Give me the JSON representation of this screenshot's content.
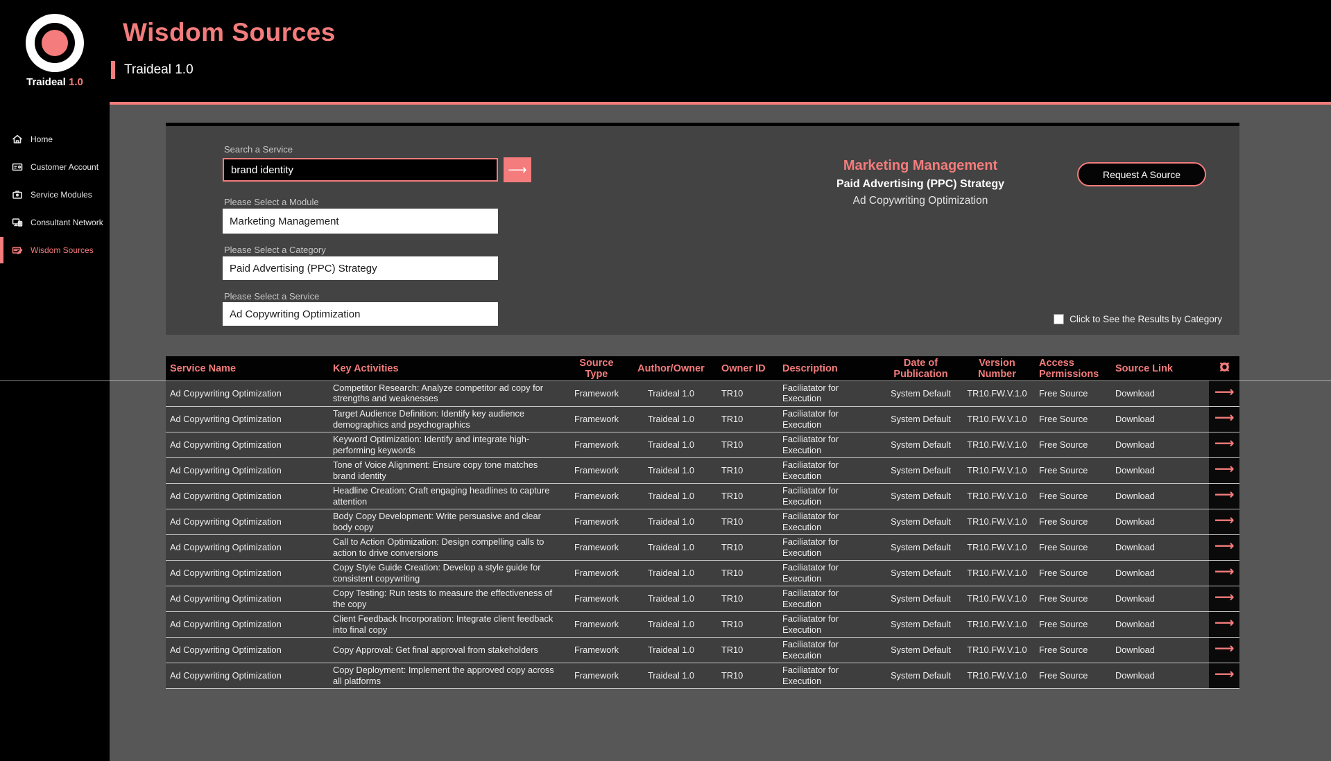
{
  "colors": {
    "accent": "#f47c7c"
  },
  "brand": {
    "name": "Traideal",
    "version": "1.0"
  },
  "header": {
    "title": "Wisdom Sources",
    "subtitle": "Traideal 1.0"
  },
  "sidebar": {
    "items": [
      {
        "slug": "home",
        "label": "Home",
        "icon": "home-icon",
        "active": false
      },
      {
        "slug": "customer-account",
        "label": "Customer Account",
        "icon": "customer-account-icon",
        "active": false
      },
      {
        "slug": "service-modules",
        "label": "Service Modules",
        "icon": "service-modules-icon",
        "active": false
      },
      {
        "slug": "consultant-network",
        "label": "Consultant Network",
        "icon": "consultant-network-icon",
        "active": false
      },
      {
        "slug": "wisdom-sources",
        "label": "Wisdom Sources",
        "icon": "wisdom-sources-icon",
        "active": true
      }
    ]
  },
  "search_panel": {
    "search_label": "Search a Service",
    "search_value": "brand identity",
    "search_button_icon": "arrow-right-icon",
    "module_label": "Please Select a Module",
    "module_value": "Marketing Management",
    "category_label": "Please Select a Category",
    "category_value": "Paid Advertising (PPC) Strategy",
    "service_label": "Please Select a Service",
    "service_value": "Ad Copywriting Optimization",
    "selection_summary": {
      "module": "Marketing Management",
      "category": "Paid Advertising (PPC) Strategy",
      "service": "Ad Copywriting Optimization"
    },
    "request_button_label": "Request A Source",
    "results_checkbox_label": "Click to See the Results by Category",
    "results_checkbox_checked": false
  },
  "table": {
    "settings_icon": "gear-icon",
    "row_action_icon": "arrow-right-icon",
    "columns": [
      "Service Name",
      "Key Activities",
      "Source Type",
      "Author/Owner",
      "Owner ID",
      "Description",
      "Date of Publication",
      "Version Number",
      "Access Permissions",
      "Source Link"
    ],
    "rows": [
      [
        "Ad Copywriting Optimization",
        "Competitor Research: Analyze competitor ad copy for strengths and weaknesses",
        "Framework",
        "Traideal 1.0",
        "TR10",
        "Faciliatator for Execution",
        "System Default",
        "TR10.FW.V.1.0",
        "Free Source",
        "Download"
      ],
      [
        "Ad Copywriting Optimization",
        "Target Audience Definition: Identify key audience demographics and psychographics",
        "Framework",
        "Traideal 1.0",
        "TR10",
        "Faciliatator for Execution",
        "System Default",
        "TR10.FW.V.1.0",
        "Free Source",
        "Download"
      ],
      [
        "Ad Copywriting Optimization",
        "Keyword Optimization: Identify and integrate high-performing keywords",
        "Framework",
        "Traideal 1.0",
        "TR10",
        "Faciliatator for Execution",
        "System Default",
        "TR10.FW.V.1.0",
        "Free Source",
        "Download"
      ],
      [
        "Ad Copywriting Optimization",
        "Tone of Voice Alignment: Ensure copy tone matches brand identity",
        "Framework",
        "Traideal 1.0",
        "TR10",
        "Faciliatator for Execution",
        "System Default",
        "TR10.FW.V.1.0",
        "Free Source",
        "Download"
      ],
      [
        "Ad Copywriting Optimization",
        "Headline Creation: Craft engaging headlines to capture attention",
        "Framework",
        "Traideal 1.0",
        "TR10",
        "Faciliatator for Execution",
        "System Default",
        "TR10.FW.V.1.0",
        "Free Source",
        "Download"
      ],
      [
        "Ad Copywriting Optimization",
        "Body Copy Development: Write persuasive and clear body copy",
        "Framework",
        "Traideal 1.0",
        "TR10",
        "Faciliatator for Execution",
        "System Default",
        "TR10.FW.V.1.0",
        "Free Source",
        "Download"
      ],
      [
        "Ad Copywriting Optimization",
        "Call to Action Optimization: Design compelling calls to action to drive conversions",
        "Framework",
        "Traideal 1.0",
        "TR10",
        "Faciliatator for Execution",
        "System Default",
        "TR10.FW.V.1.0",
        "Free Source",
        "Download"
      ],
      [
        "Ad Copywriting Optimization",
        "Copy Style Guide Creation: Develop a style guide for consistent copywriting",
        "Framework",
        "Traideal 1.0",
        "TR10",
        "Faciliatator for Execution",
        "System Default",
        "TR10.FW.V.1.0",
        "Free Source",
        "Download"
      ],
      [
        "Ad Copywriting Optimization",
        "Copy Testing: Run tests to measure the effectiveness of the copy",
        "Framework",
        "Traideal 1.0",
        "TR10",
        "Faciliatator for Execution",
        "System Default",
        "TR10.FW.V.1.0",
        "Free Source",
        "Download"
      ],
      [
        "Ad Copywriting Optimization",
        "Client Feedback Incorporation: Integrate client feedback into final copy",
        "Framework",
        "Traideal 1.0",
        "TR10",
        "Faciliatator for Execution",
        "System Default",
        "TR10.FW.V.1.0",
        "Free Source",
        "Download"
      ],
      [
        "Ad Copywriting Optimization",
        "Copy Approval: Get final approval from stakeholders",
        "Framework",
        "Traideal 1.0",
        "TR10",
        "Faciliatator for Execution",
        "System Default",
        "TR10.FW.V.1.0",
        "Free Source",
        "Download"
      ],
      [
        "Ad Copywriting Optimization",
        "Copy Deployment: Implement the approved copy across all platforms",
        "Framework",
        "Traideal 1.0",
        "TR10",
        "Faciliatator for Execution",
        "System Default",
        "TR10.FW.V.1.0",
        "Free Source",
        "Download"
      ]
    ]
  }
}
